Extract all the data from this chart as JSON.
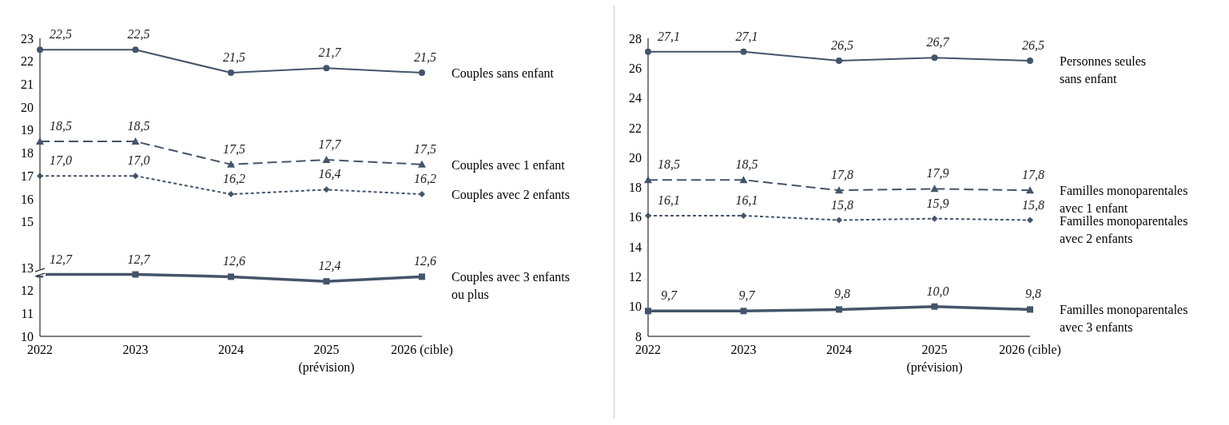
{
  "chart_data": [
    {
      "type": "line",
      "categories": [
        "2022",
        "2023",
        "2024",
        "2025\n(prévision)",
        "2026 (cible)"
      ],
      "ylim": [
        10,
        23
      ],
      "yticks": [
        10,
        11,
        12,
        13,
        15,
        16,
        17,
        18,
        19,
        20,
        21,
        22,
        23
      ],
      "grid": false,
      "legend": "right",
      "series": [
        {
          "name": "Couples sans enfant",
          "color": "#44546a",
          "values": [
            22.5,
            22.5,
            21.5,
            21.7,
            21.5
          ],
          "value_labels": [
            "22,5",
            "22,5",
            "21,5",
            "21,7",
            "21,5"
          ],
          "line_style": "solid",
          "marker": "circle"
        },
        {
          "name": "Couples avec 1 enfant",
          "color": "#44546a",
          "values": [
            18.5,
            18.5,
            17.5,
            17.7,
            17.5
          ],
          "value_labels": [
            "18,5",
            "18,5",
            "17,5",
            "17,7",
            "17,5"
          ],
          "line_style": "dashed",
          "marker": "triangle"
        },
        {
          "name": "Couples avec 2 enfants",
          "color": "#44546a",
          "values": [
            17.0,
            17.0,
            16.2,
            16.4,
            16.2
          ],
          "value_labels": [
            "17,0",
            "17,0",
            "16,2",
            "16,4",
            "16,2"
          ],
          "line_style": "dotted",
          "marker": "diamond"
        },
        {
          "name": "Couples avec 3 enfants\nou plus",
          "color": "#44546a",
          "values": [
            12.7,
            12.7,
            12.6,
            12.4,
            12.6
          ],
          "value_labels": [
            "12,7",
            "12,7",
            "12,6",
            "12,4",
            "12,6"
          ],
          "line_style": "solid",
          "marker": "square"
        }
      ]
    },
    {
      "type": "line",
      "categories": [
        "2022",
        "2023",
        "2024",
        "2025\n(prévision)",
        "2026 (cible)"
      ],
      "ylim": [
        8,
        28
      ],
      "yticks": [
        8,
        10,
        12,
        14,
        16,
        18,
        20,
        22,
        24,
        26,
        28
      ],
      "grid": false,
      "legend": "right",
      "series": [
        {
          "name": "Personnes seules\nsans enfant",
          "color": "#44546a",
          "values": [
            27.1,
            27.1,
            26.5,
            26.7,
            26.5
          ],
          "value_labels": [
            "27,1",
            "27,1",
            "26,5",
            "26,7",
            "26,5"
          ],
          "line_style": "solid",
          "marker": "circle"
        },
        {
          "name": "Familles monoparentales\navec 1 enfant",
          "color": "#44546a",
          "values": [
            18.5,
            18.5,
            17.8,
            17.9,
            17.8
          ],
          "value_labels": [
            "18,5",
            "18,5",
            "17,8",
            "17,9",
            "17,8"
          ],
          "line_style": "dashed",
          "marker": "triangle"
        },
        {
          "name": "Familles monoparentales\navec 2 enfants",
          "color": "#44546a",
          "values": [
            16.1,
            16.1,
            15.8,
            15.9,
            15.8
          ],
          "value_labels": [
            "16,1",
            "16,1",
            "15,8",
            "15,9",
            "15,8"
          ],
          "line_style": "dotted",
          "marker": "diamond"
        },
        {
          "name": "Familles monoparentales\navec 3 enfants",
          "color": "#44546a",
          "values": [
            9.7,
            9.7,
            9.8,
            10.0,
            9.8
          ],
          "value_labels": [
            "9,7",
            "9,7",
            "9,8",
            "10,0",
            "9,8"
          ],
          "line_style": "solid",
          "marker": "square"
        }
      ]
    }
  ]
}
